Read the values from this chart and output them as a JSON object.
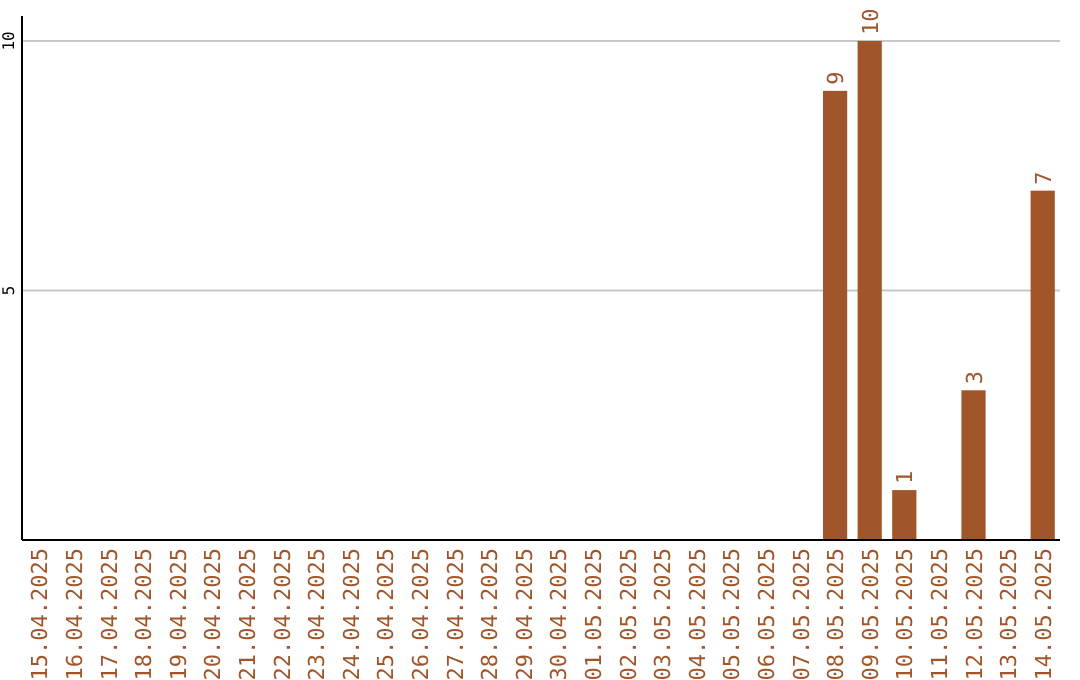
{
  "chart_data": {
    "type": "bar",
    "categories": [
      "15.04.2025",
      "16.04.2025",
      "17.04.2025",
      "18.04.2025",
      "19.04.2025",
      "20.04.2025",
      "21.04.2025",
      "22.04.2025",
      "23.04.2025",
      "24.04.2025",
      "25.04.2025",
      "26.04.2025",
      "27.04.2025",
      "28.04.2025",
      "29.04.2025",
      "30.04.2025",
      "01.05.2025",
      "02.05.2025",
      "03.05.2025",
      "04.05.2025",
      "05.05.2025",
      "06.05.2025",
      "07.05.2025",
      "08.05.2025",
      "09.05.2025",
      "10.05.2025",
      "11.05.2025",
      "12.05.2025",
      "13.05.2025",
      "14.05.2025"
    ],
    "values": [
      0,
      0,
      0,
      0,
      0,
      0,
      0,
      0,
      0,
      0,
      0,
      0,
      0,
      0,
      0,
      0,
      0,
      0,
      0,
      0,
      0,
      0,
      0,
      9,
      10,
      1,
      0,
      3,
      0,
      7
    ],
    "value_labels": [
      null,
      null,
      null,
      null,
      null,
      null,
      null,
      null,
      null,
      null,
      null,
      null,
      null,
      null,
      null,
      null,
      null,
      null,
      null,
      null,
      null,
      null,
      null,
      "9",
      "10",
      "1",
      null,
      "3",
      null,
      "7"
    ],
    "color": "#a0562a",
    "ylim": [
      0,
      10.5
    ],
    "yticks": [
      5,
      10
    ],
    "grid": "y"
  }
}
